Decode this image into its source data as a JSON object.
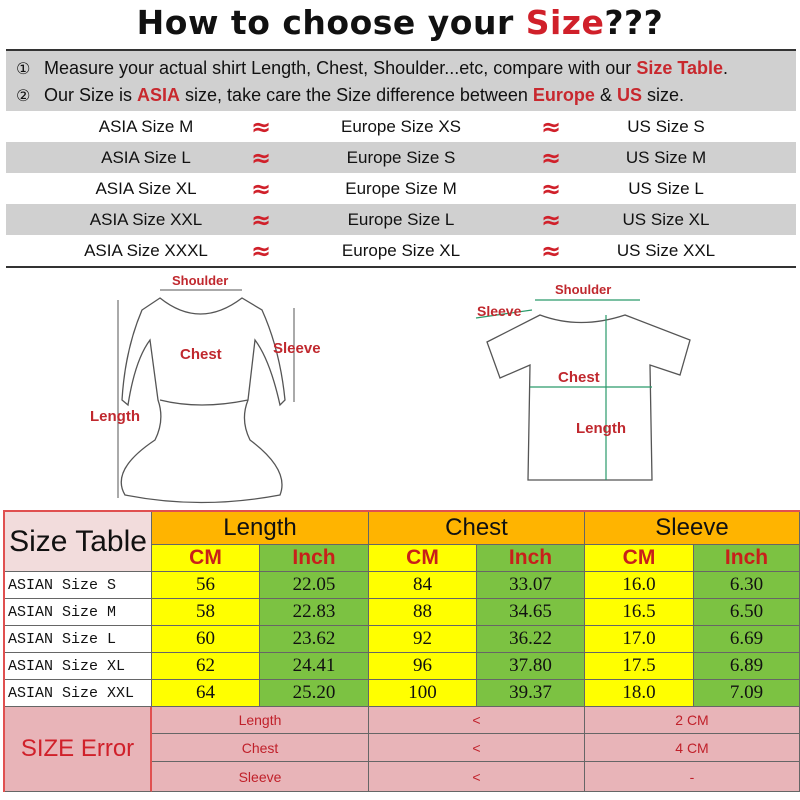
{
  "title": {
    "prefix": "How to choose your ",
    "highlight": "Size",
    "suffix": "???"
  },
  "notes": [
    {
      "num": "①",
      "parts": [
        {
          "t": "Measure your actual shirt Length, Chest, Shoulder...etc, compare with our "
        },
        {
          "t": "Size Table",
          "hl": true
        },
        {
          "t": "."
        }
      ]
    },
    {
      "num": "②",
      "parts": [
        {
          "t": "Our Size is "
        },
        {
          "t": "ASIA",
          "hl": true
        },
        {
          "t": " size, take care the Size difference between "
        },
        {
          "t": "Europe",
          "hl": true
        },
        {
          "t": " & "
        },
        {
          "t": "US",
          "hl": true
        },
        {
          "t": " size."
        }
      ]
    }
  ],
  "approx_symbol": "≈",
  "conversions": [
    {
      "asia": "ASIA Size M",
      "europe": "Europe Size XS",
      "us": "US Size S"
    },
    {
      "asia": "ASIA Size L",
      "europe": "Europe Size S",
      "us": "US Size M"
    },
    {
      "asia": "ASIA Size XL",
      "europe": "Europe Size M",
      "us": "US Size L"
    },
    {
      "asia": "ASIA Size XXL",
      "europe": "Europe Size L",
      "us": "US Size XL"
    },
    {
      "asia": "ASIA Size XXXL",
      "europe": "Europe Size XL",
      "us": "US Size XXL"
    }
  ],
  "diagram_labels": {
    "dress": {
      "shoulder": "Shoulder",
      "chest": "Chest",
      "sleeve": "Sleeve",
      "length": "Length"
    },
    "tshirt": {
      "shoulder": "Shoulder",
      "sleeve": "Sleeve",
      "chest": "Chest",
      "length": "Length"
    }
  },
  "size_table": {
    "title": "Size Table",
    "groups": [
      "Length",
      "Chest",
      "Sleeve"
    ],
    "units": [
      "CM",
      "Inch",
      "CM",
      "Inch",
      "CM",
      "Inch"
    ],
    "rows": [
      {
        "label": "ASIAN Size S",
        "values": [
          "56",
          "22.05",
          "84",
          "33.07",
          "16.0",
          "6.30"
        ]
      },
      {
        "label": "ASIAN Size M",
        "values": [
          "58",
          "22.83",
          "88",
          "34.65",
          "16.5",
          "6.50"
        ]
      },
      {
        "label": "ASIAN Size L",
        "values": [
          "60",
          "23.62",
          "92",
          "36.22",
          "17.0",
          "6.69"
        ]
      },
      {
        "label": "ASIAN Size XL",
        "values": [
          "62",
          "24.41",
          "96",
          "37.80",
          "17.5",
          "6.89"
        ]
      },
      {
        "label": "ASIAN Size XXL",
        "values": [
          "64",
          "25.20",
          "100",
          "39.37",
          "18.0",
          "7.09"
        ]
      }
    ],
    "error_title": "SIZE Error",
    "errors": [
      {
        "item": "Length",
        "op": "<",
        "value": "2 CM"
      },
      {
        "item": "Chest",
        "op": "<",
        "value": "4 CM"
      },
      {
        "item": "Sleeve",
        "op": "<",
        "value": "-"
      }
    ]
  },
  "colors": {
    "accent_red": "#d0202a",
    "header_orange": "#ffb400",
    "cm_yellow": "#ffff00",
    "inch_green": "#7cc242",
    "error_pink": "#e8b4b8",
    "table_title_bg": "#f2dcdc"
  }
}
